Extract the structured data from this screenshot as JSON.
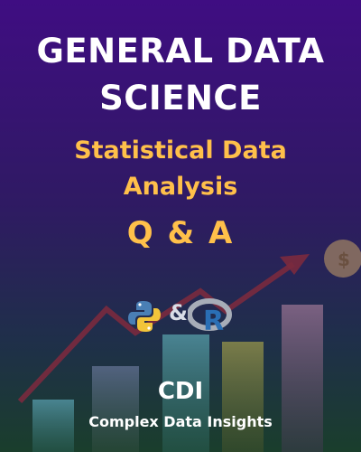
{
  "cover": {
    "title_line1": "GENERAL DATA",
    "title_line2": "SCIENCE",
    "subtitle_line1": "Statistical Data",
    "subtitle_line2": "Analysis",
    "qa": "Q & A",
    "logos": {
      "python_icon": "python-logo-icon",
      "ampersand": "&",
      "r_icon": "r-logo-icon",
      "r_letter": "R"
    },
    "brand": "CDI",
    "brand_full": "Complex Data Insights",
    "coin_symbol": "$"
  },
  "colors": {
    "background_top": "#3f0d82",
    "background_bottom": "#1a3e2c",
    "title": "#ffffff",
    "accent": "#ffc04a",
    "arrow": "#7a2a3e"
  }
}
